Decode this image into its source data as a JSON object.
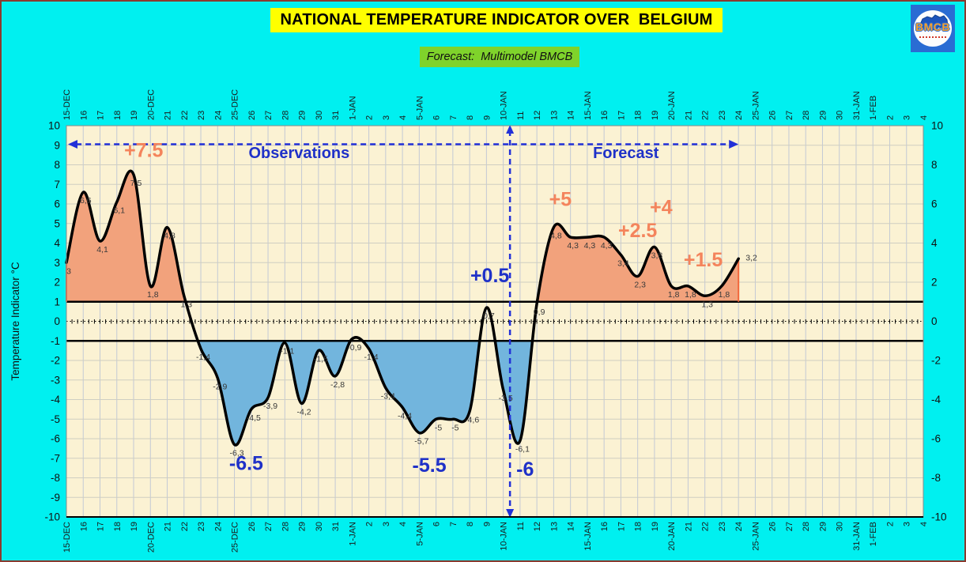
{
  "header": {
    "title": "NATIONAL TEMPERATURE INDICATOR OVER  BELGIUM",
    "subtitle": "Forecast:  Multimodel BMCB",
    "logo_text": "BMCB"
  },
  "chart_data": {
    "type": "area",
    "title": "NATIONAL TEMPERATURE INDICATOR OVER  BELGIUM",
    "subtitle": "Forecast:  Multimodel BMCB",
    "ylabel": "Temperature Indicator  °C",
    "ylim": [
      -10,
      10
    ],
    "y_tick_step_left": 1,
    "y_tick_step_right": 2,
    "grid": true,
    "x_labels": [
      "15-DEC",
      "16",
      "17",
      "18",
      "19",
      "20-DEC",
      "21",
      "22",
      "23",
      "24",
      "25-DEC",
      "26",
      "27",
      "28",
      "29",
      "30",
      "31",
      "1-JAN",
      "2",
      "3",
      "4",
      "5-JAN",
      "6",
      "7",
      "8",
      "9",
      "10-JAN",
      "11",
      "12",
      "13",
      "14",
      "15-JAN",
      "16",
      "17",
      "18",
      "19",
      "20-JAN",
      "21",
      "22",
      "23",
      "24",
      "25-JAN",
      "26",
      "27",
      "28",
      "29",
      "30",
      "31-JAN",
      "1-FEB",
      "2",
      "3",
      "4"
    ],
    "series": [
      {
        "name": "Temperature Indicator",
        "values": [
          3,
          6.6,
          4.1,
          6.1,
          7.5,
          1.8,
          4.8,
          1.3,
          -1.4,
          -2.9,
          -6.3,
          -4.5,
          -3.9,
          -1.1,
          -4.2,
          -1.5,
          -2.8,
          -0.9,
          -1.4,
          -3.4,
          -4.4,
          -5.7,
          -5,
          -5,
          -4.6,
          0.7,
          -3.5,
          -6.1,
          0.9,
          4.8,
          4.3,
          4.3,
          4.3,
          3.4,
          2.3,
          3.8,
          1.8,
          1.8,
          1.3,
          1.8,
          3.2
        ],
        "point_labels": [
          "3",
          "6,6",
          "4,1",
          "6,1",
          "7,5",
          "1,8",
          "4,8",
          "1,3",
          "-1,4",
          "-2,9",
          "-6,3",
          "-4,5",
          "-3,9",
          "-1,1",
          "-4,2",
          "-1,5",
          "-2,8",
          "-0,9",
          "-1,4",
          "-3,4",
          "-4,4",
          "-5,7",
          "-5",
          "-5",
          "-4,6",
          "0,7",
          "-3,5",
          "-6,1",
          "0,9",
          "4,8",
          "4,3",
          "4,3",
          "4,3",
          "3,4",
          "2,3",
          "3,8",
          "1,8",
          "1,8",
          "1,3",
          "1,8",
          "3,2"
        ]
      }
    ],
    "thresholds": {
      "upper": 1,
      "lower": -1
    },
    "divider": {
      "x_label": "10-JAN",
      "day_index": 26.4
    },
    "regions": [
      {
        "label": "Observations",
        "day_index": 13.85,
        "value": 8.35
      },
      {
        "label": "Forecast",
        "day_index": 33.3,
        "value": 8.35
      }
    ],
    "annotations": [
      {
        "text": "+7.5",
        "day_index": 4.6,
        "value": 8.4,
        "type": "positive"
      },
      {
        "text": "-6.5",
        "day_index": 10.7,
        "value": -7.6,
        "type": "blue"
      },
      {
        "text": "-5.5",
        "day_index": 21.6,
        "value": -7.7,
        "type": "blue"
      },
      {
        "text": "+0.5",
        "day_index": 25.2,
        "value": 2.0,
        "type": "blue"
      },
      {
        "text": "-6",
        "day_index": 27.3,
        "value": -7.9,
        "type": "blue"
      },
      {
        "text": "+5",
        "day_index": 29.4,
        "value": 5.9,
        "type": "positive"
      },
      {
        "text": "+2.5",
        "day_index": 34.0,
        "value": 4.3,
        "type": "positive"
      },
      {
        "text": "+4",
        "day_index": 35.4,
        "value": 5.5,
        "type": "positive"
      },
      {
        "text": "+1.5",
        "day_index": 37.9,
        "value": 2.8,
        "type": "positive"
      }
    ],
    "colors": {
      "background": "#00F0F0",
      "page_border": "#8A3B2F",
      "plot_background": "#FBF2D3",
      "grid_vertical": "#C3C9D4",
      "grid_horizontal": "#CFCEC2",
      "curve": "#000000",
      "positive_fill": "#F2A27C",
      "negative_fill": "#72B5DD",
      "threshold_line": "#000000",
      "annotation_positive": "#F4845C",
      "annotation_blue": "#1F31C8",
      "arrow_blue": "#2230D8",
      "title_bg": "#FFFF00",
      "subtitle_bg": "#7FD32B",
      "series_endcap": "#F2673C"
    }
  }
}
